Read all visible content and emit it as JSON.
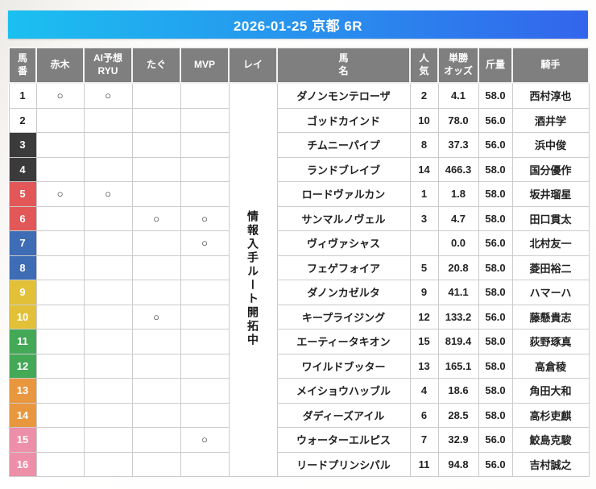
{
  "banner": {
    "title": "2026-01-25 京都 6R"
  },
  "colors": {
    "banner_gradient_from": "#1bc0f0",
    "banner_gradient_to": "#3365ec",
    "header_bg": "#7f7f7f",
    "rei_note_bg": "#dcdcdc",
    "bracket": {
      "white": {
        "bg": "#ffffff",
        "fg": "#222222"
      },
      "black": {
        "bg": "#3b3b3b",
        "fg": "#ffffff"
      },
      "red": {
        "bg": "#e25757",
        "fg": "#ffffff"
      },
      "blue": {
        "bg": "#3e6cb5",
        "fg": "#ffffff"
      },
      "yellow": {
        "bg": "#e2c139",
        "fg": "#ffffff"
      },
      "green": {
        "bg": "#43a957",
        "fg": "#ffffff"
      },
      "orange": {
        "bg": "#e9973f",
        "fg": "#ffffff"
      },
      "pink": {
        "bg": "#ee8fa9",
        "fg": "#ffffff"
      }
    }
  },
  "table": {
    "headers": [
      "馬\n番",
      "赤木",
      "AI予想\nRYU",
      "たぐ",
      "MVP",
      "レイ",
      "馬\n名",
      "人\n気",
      "単勝\nオッズ",
      "斤量",
      "騎手"
    ],
    "rei_note": "情報入手ルート開拓中",
    "rows": [
      {
        "num": "1",
        "bracket": "white",
        "marks": {
          "akagi": "○",
          "ai_ryu": "○",
          "tagu": "",
          "mvp": ""
        },
        "horse": "ダノンモンテローザ",
        "popularity": "2",
        "odds": "4.1",
        "weight": "58.0",
        "jockey": "西村淳也"
      },
      {
        "num": "2",
        "bracket": "white",
        "marks": {
          "akagi": "",
          "ai_ryu": "",
          "tagu": "",
          "mvp": ""
        },
        "horse": "ゴッドカインド",
        "popularity": "10",
        "odds": "78.0",
        "weight": "56.0",
        "jockey": "酒井学"
      },
      {
        "num": "3",
        "bracket": "black",
        "marks": {
          "akagi": "",
          "ai_ryu": "",
          "tagu": "",
          "mvp": ""
        },
        "horse": "チムニーパイプ",
        "popularity": "8",
        "odds": "37.3",
        "weight": "56.0",
        "jockey": "浜中俊"
      },
      {
        "num": "4",
        "bracket": "black",
        "marks": {
          "akagi": "",
          "ai_ryu": "",
          "tagu": "",
          "mvp": ""
        },
        "horse": "ランドブレイブ",
        "popularity": "14",
        "odds": "466.3",
        "weight": "58.0",
        "jockey": "国分優作"
      },
      {
        "num": "5",
        "bracket": "red",
        "marks": {
          "akagi": "○",
          "ai_ryu": "○",
          "tagu": "",
          "mvp": ""
        },
        "horse": "ロードヴァルカン",
        "popularity": "1",
        "odds": "1.8",
        "weight": "58.0",
        "jockey": "坂井瑠星"
      },
      {
        "num": "6",
        "bracket": "red",
        "marks": {
          "akagi": "",
          "ai_ryu": "",
          "tagu": "○",
          "mvp": "○"
        },
        "horse": "サンマルノヴェル",
        "popularity": "3",
        "odds": "4.7",
        "weight": "58.0",
        "jockey": "田口貫太"
      },
      {
        "num": "7",
        "bracket": "blue",
        "marks": {
          "akagi": "",
          "ai_ryu": "",
          "tagu": "",
          "mvp": "○"
        },
        "horse": "ヴィヴァシャス",
        "popularity": "",
        "odds": "0.0",
        "weight": "56.0",
        "jockey": "北村友一"
      },
      {
        "num": "8",
        "bracket": "blue",
        "marks": {
          "akagi": "",
          "ai_ryu": "",
          "tagu": "",
          "mvp": ""
        },
        "horse": "フェゲフォイア",
        "popularity": "5",
        "odds": "20.8",
        "weight": "58.0",
        "jockey": "菱田裕二"
      },
      {
        "num": "9",
        "bracket": "yellow",
        "marks": {
          "akagi": "",
          "ai_ryu": "",
          "tagu": "",
          "mvp": ""
        },
        "horse": "ダノンカゼルタ",
        "popularity": "9",
        "odds": "41.1",
        "weight": "58.0",
        "jockey": "ハマーハ"
      },
      {
        "num": "10",
        "bracket": "yellow",
        "marks": {
          "akagi": "",
          "ai_ryu": "",
          "tagu": "○",
          "mvp": ""
        },
        "horse": "キープライジング",
        "popularity": "12",
        "odds": "133.2",
        "weight": "56.0",
        "jockey": "藤懸貴志"
      },
      {
        "num": "11",
        "bracket": "green",
        "marks": {
          "akagi": "",
          "ai_ryu": "",
          "tagu": "",
          "mvp": ""
        },
        "horse": "エーティータキオン",
        "popularity": "15",
        "odds": "819.4",
        "weight": "58.0",
        "jockey": "荻野琢真"
      },
      {
        "num": "12",
        "bracket": "green",
        "marks": {
          "akagi": "",
          "ai_ryu": "",
          "tagu": "",
          "mvp": ""
        },
        "horse": "ワイルドブッター",
        "popularity": "13",
        "odds": "165.1",
        "weight": "58.0",
        "jockey": "高倉稜"
      },
      {
        "num": "13",
        "bracket": "orange",
        "marks": {
          "akagi": "",
          "ai_ryu": "",
          "tagu": "",
          "mvp": ""
        },
        "horse": "メイショウハッブル",
        "popularity": "4",
        "odds": "18.6",
        "weight": "58.0",
        "jockey": "角田大和"
      },
      {
        "num": "14",
        "bracket": "orange",
        "marks": {
          "akagi": "",
          "ai_ryu": "",
          "tagu": "",
          "mvp": ""
        },
        "horse": "ダディーズアイル",
        "popularity": "6",
        "odds": "28.5",
        "weight": "58.0",
        "jockey": "高杉吏麒"
      },
      {
        "num": "15",
        "bracket": "pink",
        "marks": {
          "akagi": "",
          "ai_ryu": "",
          "tagu": "",
          "mvp": "○"
        },
        "horse": "ウォーターエルピス",
        "popularity": "7",
        "odds": "32.9",
        "weight": "56.0",
        "jockey": "鮫島克駿"
      },
      {
        "num": "16",
        "bracket": "pink",
        "marks": {
          "akagi": "",
          "ai_ryu": "",
          "tagu": "",
          "mvp": ""
        },
        "horse": "リードプリンシパル",
        "popularity": "11",
        "odds": "94.8",
        "weight": "56.0",
        "jockey": "吉村誠之"
      }
    ]
  }
}
